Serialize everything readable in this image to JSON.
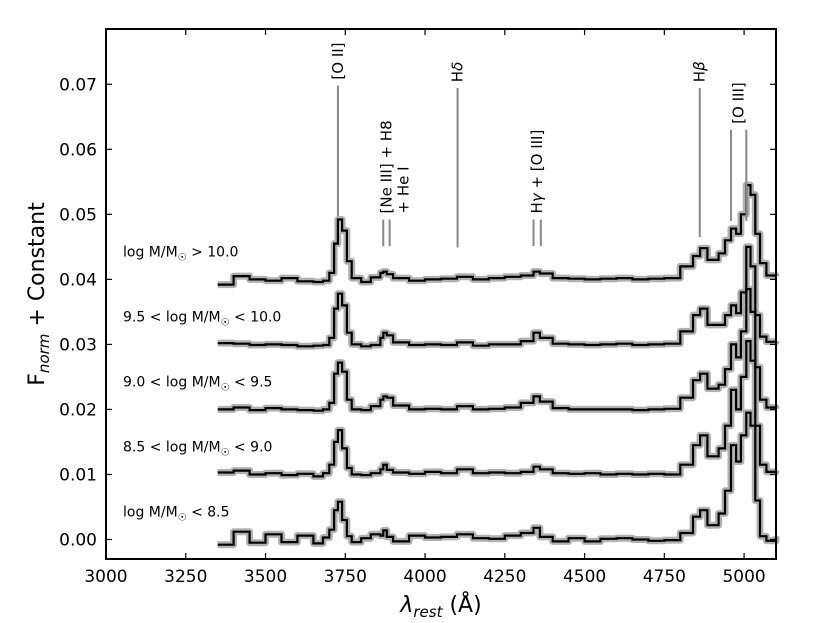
{
  "chart_data": {
    "type": "line",
    "xlabel": "λ_rest (Å)",
    "ylabel": "F_norm + Constant",
    "xlim": [
      3000,
      5100
    ],
    "ylim": [
      -0.003,
      0.0785
    ],
    "xticks": [
      "3000",
      "3250",
      "3500",
      "3750",
      "4000",
      "4250",
      "4500",
      "4750",
      "5000"
    ],
    "yticks": [
      "0.00",
      "0.01",
      "0.02",
      "0.03",
      "0.04",
      "0.05",
      "0.06",
      "0.07"
    ],
    "grid": false,
    "legend": "none",
    "series_color": "#000000",
    "error_band_color": "#a9a9a9",
    "series": [
      {
        "name": "log M/M☉ > 10.0",
        "offset": 0.04,
        "x": [
          3350,
          3400,
          3450,
          3500,
          3550,
          3600,
          3650,
          3680,
          3700,
          3715,
          3727,
          3740,
          3755,
          3770,
          3800,
          3830,
          3860,
          3869,
          3880,
          3900,
          3950,
          4000,
          4050,
          4100,
          4150,
          4200,
          4250,
          4300,
          4340,
          4360,
          4400,
          4450,
          4500,
          4550,
          4600,
          4650,
          4700,
          4750,
          4800,
          4840,
          4862,
          4885,
          4920,
          4940,
          4959,
          4975,
          4990,
          5007,
          5020,
          5035,
          5050,
          5070,
          5100
        ],
        "y": [
          0.0392,
          0.0405,
          0.04,
          0.0398,
          0.0402,
          0.0397,
          0.0396,
          0.0398,
          0.041,
          0.0455,
          0.0492,
          0.0475,
          0.0428,
          0.0402,
          0.0396,
          0.0403,
          0.041,
          0.0412,
          0.0408,
          0.0402,
          0.0398,
          0.04,
          0.0401,
          0.0404,
          0.04,
          0.0402,
          0.0404,
          0.0406,
          0.0412,
          0.0409,
          0.0402,
          0.0401,
          0.04,
          0.0401,
          0.0402,
          0.04,
          0.0401,
          0.0402,
          0.042,
          0.0436,
          0.0448,
          0.043,
          0.044,
          0.046,
          0.0478,
          0.047,
          0.05,
          0.0545,
          0.053,
          0.047,
          0.0425,
          0.0406,
          0.0405
        ]
      },
      {
        "name": "9.5 < log M/M☉ < 10.0",
        "offset": 0.03,
        "x": [
          3350,
          3400,
          3450,
          3500,
          3550,
          3600,
          3650,
          3680,
          3700,
          3715,
          3727,
          3740,
          3755,
          3770,
          3800,
          3830,
          3860,
          3869,
          3880,
          3900,
          3950,
          4000,
          4050,
          4100,
          4150,
          4200,
          4250,
          4300,
          4340,
          4360,
          4400,
          4450,
          4500,
          4550,
          4600,
          4650,
          4700,
          4750,
          4800,
          4840,
          4862,
          4885,
          4920,
          4940,
          4959,
          4975,
          4990,
          5007,
          5020,
          5035,
          5050,
          5070,
          5100
        ],
        "y": [
          0.0302,
          0.0301,
          0.0299,
          0.03,
          0.0299,
          0.0297,
          0.0298,
          0.0299,
          0.031,
          0.0355,
          0.0378,
          0.036,
          0.0318,
          0.03,
          0.0297,
          0.0299,
          0.031,
          0.0318,
          0.0314,
          0.0303,
          0.0299,
          0.03,
          0.0299,
          0.0303,
          0.0298,
          0.03,
          0.03,
          0.0305,
          0.0318,
          0.031,
          0.0301,
          0.03,
          0.0299,
          0.03,
          0.0301,
          0.0299,
          0.03,
          0.0301,
          0.032,
          0.0345,
          0.0355,
          0.033,
          0.033,
          0.0345,
          0.036,
          0.0348,
          0.038,
          0.045,
          0.042,
          0.0345,
          0.0312,
          0.0304,
          0.0305
        ]
      },
      {
        "name": "9.0 < log M/M☉ < 9.5",
        "offset": 0.02,
        "x": [
          3350,
          3400,
          3450,
          3500,
          3550,
          3600,
          3650,
          3680,
          3700,
          3715,
          3727,
          3740,
          3755,
          3770,
          3800,
          3830,
          3860,
          3869,
          3880,
          3900,
          3950,
          4000,
          4050,
          4100,
          4150,
          4200,
          4250,
          4300,
          4340,
          4360,
          4400,
          4450,
          4500,
          4550,
          4600,
          4650,
          4700,
          4750,
          4800,
          4840,
          4862,
          4885,
          4920,
          4940,
          4959,
          4975,
          4990,
          5007,
          5020,
          5035,
          5050,
          5070,
          5100
        ],
        "y": [
          0.02,
          0.0203,
          0.0199,
          0.0202,
          0.02,
          0.0199,
          0.0198,
          0.02,
          0.021,
          0.0255,
          0.0272,
          0.0258,
          0.0215,
          0.02,
          0.0199,
          0.0205,
          0.0215,
          0.022,
          0.0218,
          0.0206,
          0.02,
          0.0201,
          0.02,
          0.0205,
          0.02,
          0.0201,
          0.0203,
          0.021,
          0.022,
          0.0212,
          0.0202,
          0.02,
          0.02,
          0.02,
          0.02,
          0.0199,
          0.02,
          0.0201,
          0.0218,
          0.0245,
          0.0255,
          0.0232,
          0.0238,
          0.0262,
          0.03,
          0.028,
          0.032,
          0.0385,
          0.035,
          0.0265,
          0.0215,
          0.0203,
          0.0201
        ]
      },
      {
        "name": "8.5 < log M/M☉ < 9.0",
        "offset": 0.01,
        "x": [
          3350,
          3400,
          3450,
          3500,
          3550,
          3600,
          3650,
          3680,
          3700,
          3715,
          3727,
          3740,
          3755,
          3770,
          3800,
          3830,
          3860,
          3869,
          3880,
          3900,
          3950,
          4000,
          4050,
          4100,
          4150,
          4200,
          4250,
          4300,
          4340,
          4360,
          4400,
          4450,
          4500,
          4550,
          4600,
          4650,
          4700,
          4750,
          4800,
          4840,
          4862,
          4885,
          4920,
          4940,
          4959,
          4975,
          4990,
          5007,
          5020,
          5035,
          5050,
          5070,
          5100
        ],
        "y": [
          0.0103,
          0.0106,
          0.01,
          0.0102,
          0.0099,
          0.0101,
          0.0097,
          0.0102,
          0.0115,
          0.015,
          0.0168,
          0.014,
          0.011,
          0.01,
          0.0099,
          0.0102,
          0.0108,
          0.0115,
          0.0107,
          0.0103,
          0.0101,
          0.0104,
          0.0102,
          0.0108,
          0.0102,
          0.0103,
          0.0102,
          0.0104,
          0.0112,
          0.0108,
          0.0102,
          0.0101,
          0.0102,
          0.01,
          0.0101,
          0.01,
          0.0101,
          0.01,
          0.0115,
          0.0145,
          0.016,
          0.0128,
          0.014,
          0.0175,
          0.023,
          0.02,
          0.025,
          0.0305,
          0.0275,
          0.0175,
          0.0115,
          0.0104,
          0.0106
        ]
      },
      {
        "name": "log M/M☉ < 8.5",
        "offset": 0.0,
        "x": [
          3350,
          3400,
          3450,
          3500,
          3550,
          3600,
          3650,
          3680,
          3700,
          3715,
          3727,
          3740,
          3755,
          3770,
          3800,
          3830,
          3860,
          3869,
          3880,
          3900,
          3950,
          4000,
          4050,
          4100,
          4150,
          4200,
          4250,
          4300,
          4340,
          4360,
          4400,
          4450,
          4500,
          4550,
          4600,
          4650,
          4700,
          4750,
          4800,
          4840,
          4862,
          4885,
          4920,
          4940,
          4959,
          4975,
          4990,
          5007,
          5020,
          5035,
          5050,
          5070,
          5100
        ],
        "y": [
          -0.0008,
          0.0012,
          -0.0005,
          0.0008,
          -0.0004,
          0.0006,
          -0.0006,
          0.0003,
          0.0015,
          0.0045,
          0.0058,
          0.003,
          0.0005,
          -0.0004,
          0.0002,
          0.0008,
          0.0006,
          0.0014,
          0.0004,
          -0.0003,
          0.0006,
          0.0003,
          0.0004,
          0.0008,
          0.0002,
          0.0001,
          0.0006,
          0.001,
          0.0018,
          0.0004,
          -0.0003,
          0.0002,
          -0.0003,
          0.0001,
          0.0002,
          0.0,
          -0.0002,
          -0.0001,
          0.001,
          0.0035,
          0.0045,
          0.0022,
          0.004,
          0.0075,
          0.0145,
          0.012,
          0.016,
          0.0195,
          0.0175,
          0.006,
          0.0005,
          -0.0002,
          0.0005
        ]
      }
    ],
    "emission_lines": [
      {
        "label": "[O II]",
        "x": [
          3727
        ],
        "y_top": 0.0698,
        "y_bottom": 0.0497
      },
      {
        "label": "[Ne III] + H8",
        "label2": "+ He I",
        "x": [
          3869,
          3889
        ],
        "y_top": 0.0492,
        "y_bottom": 0.0451
      },
      {
        "label": "Hδ",
        "x": [
          4102
        ],
        "y_top": 0.0694,
        "y_bottom": 0.0449
      },
      {
        "label": "Hγ + [O III]",
        "x": [
          4340,
          4363
        ],
        "y_top": 0.0492,
        "y_bottom": 0.0451
      },
      {
        "label": "Hβ",
        "x": [
          4861
        ],
        "y_top": 0.0694,
        "y_bottom": 0.0465
      },
      {
        "label": "[O III]",
        "x": [
          4959,
          5007
        ],
        "y_top": 0.063,
        "y_bottom": 0.049
      }
    ]
  }
}
